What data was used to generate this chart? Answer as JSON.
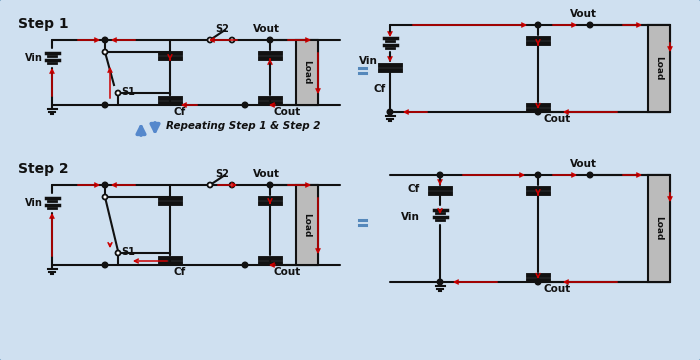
{
  "bg_color": "#cfe0f0",
  "border_color": "#6699bb",
  "red": "#cc0000",
  "blue": "#5588cc",
  "black": "#111111",
  "white": "#ffffff",
  "step1_label": "Step 1",
  "step2_label": "Step 2",
  "repeat_label": "Repeating Step 1 & Step 2",
  "s1_label": "S1",
  "s2_label": "S2",
  "cf_label": "Cf",
  "cout_label": "Cout",
  "vin_label": "Vin",
  "vout_label": "Vout",
  "load_label": "Load"
}
